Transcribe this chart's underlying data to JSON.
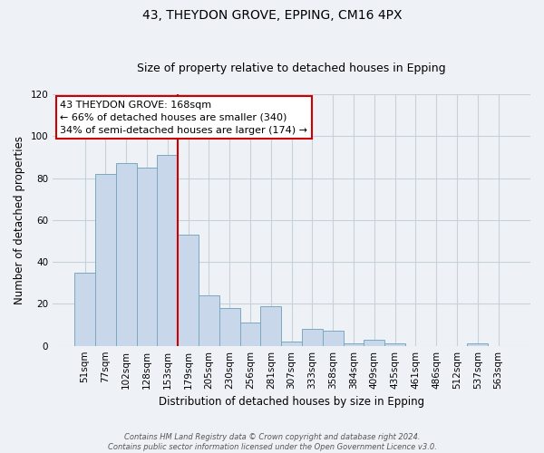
{
  "title": "43, THEYDON GROVE, EPPING, CM16 4PX",
  "subtitle": "Size of property relative to detached houses in Epping",
  "xlabel": "Distribution of detached houses by size in Epping",
  "ylabel": "Number of detached properties",
  "bar_labels": [
    "51sqm",
    "77sqm",
    "102sqm",
    "128sqm",
    "153sqm",
    "179sqm",
    "205sqm",
    "230sqm",
    "256sqm",
    "281sqm",
    "307sqm",
    "333sqm",
    "358sqm",
    "384sqm",
    "409sqm",
    "435sqm",
    "461sqm",
    "486sqm",
    "512sqm",
    "537sqm",
    "563sqm"
  ],
  "bar_values": [
    35,
    82,
    87,
    85,
    91,
    53,
    24,
    18,
    11,
    19,
    2,
    8,
    7,
    1,
    3,
    1,
    0,
    0,
    0,
    1,
    0
  ],
  "bar_color": "#c8d8ea",
  "bar_edge_color": "#7aaabf",
  "vline_color": "#cc0000",
  "vline_pos": 4.5,
  "annotation_box_text": "43 THEYDON GROVE: 168sqm\n← 66% of detached houses are smaller (340)\n34% of semi-detached houses are larger (174) →",
  "ylim": [
    0,
    120
  ],
  "yticks": [
    0,
    20,
    40,
    60,
    80,
    100,
    120
  ],
  "footer_line1": "Contains HM Land Registry data © Crown copyright and database right 2024.",
  "footer_line2": "Contains public sector information licensed under the Open Government Licence v3.0.",
  "bg_color": "#eef2f7",
  "grid_color": "#c8d0dc",
  "title_fontsize": 10,
  "subtitle_fontsize": 9,
  "axis_label_fontsize": 8.5,
  "tick_fontsize": 7.5,
  "annot_fontsize": 8
}
